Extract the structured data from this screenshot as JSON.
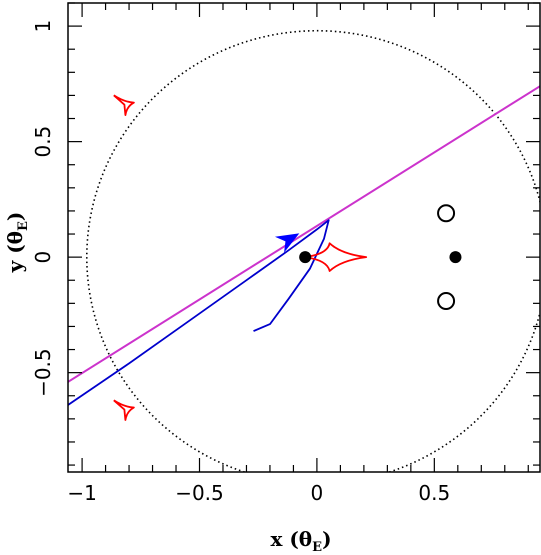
{
  "chart_data": {
    "type": "scatter",
    "title": "",
    "xlabel": "x (θ",
    "xlabel_sub": "E",
    "xlabel_close": ")",
    "ylabel": "y (θ",
    "ylabel_sub": "E",
    "ylabel_close": ")",
    "xlim": [
      -1.06,
      0.95
    ],
    "ylim": [
      -0.93,
      1.1
    ],
    "xticks": [
      -1,
      -0.5,
      0,
      0.5
    ],
    "xtick_labels": [
      "−1",
      "−0.5",
      "0",
      "0.5"
    ],
    "yticks": [
      -0.5,
      0,
      0.5,
      1
    ],
    "ytick_labels": [
      "−0.5",
      "0",
      "0.5",
      "1"
    ],
    "grid": false,
    "colors": {
      "einstein_ring": "#000000",
      "caustic": "#ff0000",
      "source_trajectory": "#cc33cc",
      "orbit_curve": "#0000cc",
      "arrow": "#0000ff",
      "lens_points": "#000000"
    },
    "einstein_ring": {
      "center": [
        0,
        0
      ],
      "radius": 0.98
    },
    "caustics": [
      {
        "center": [
          0.08,
          0.0
        ],
        "orientation": "horizontal",
        "half_width": 0.13,
        "half_height": 0.06
      },
      {
        "center": [
          -0.82,
          0.66
        ],
        "orientation": "small",
        "half_width": 0.045,
        "half_height": 0.045
      },
      {
        "center": [
          -0.82,
          -0.66
        ],
        "orientation": "small",
        "half_width": 0.045,
        "half_height": 0.045
      }
    ],
    "source_trajectory": {
      "x": [
        -1.06,
        0.95
      ],
      "y": [
        -0.54,
        0.74
      ]
    },
    "orbit_curve": {
      "x": [
        -1.06,
        -0.8,
        -0.55,
        -0.3,
        -0.12,
        0.0,
        0.05,
        0.03,
        -0.03,
        -0.12,
        -0.2,
        -0.27
      ],
      "y": [
        -0.64,
        -0.46,
        -0.28,
        -0.1,
        0.03,
        0.12,
        0.16,
        0.08,
        -0.05,
        -0.18,
        -0.29,
        -0.32
      ]
    },
    "arrow": {
      "from": [
        -0.2,
        0.03
      ],
      "to": [
        -0.08,
        0.1
      ]
    },
    "filled_points": [
      {
        "x": -0.05,
        "y": 0.0
      },
      {
        "x": 0.59,
        "y": 0.0
      }
    ],
    "open_points": [
      {
        "x": 0.55,
        "y": 0.19
      },
      {
        "x": 0.55,
        "y": -0.19
      }
    ]
  }
}
